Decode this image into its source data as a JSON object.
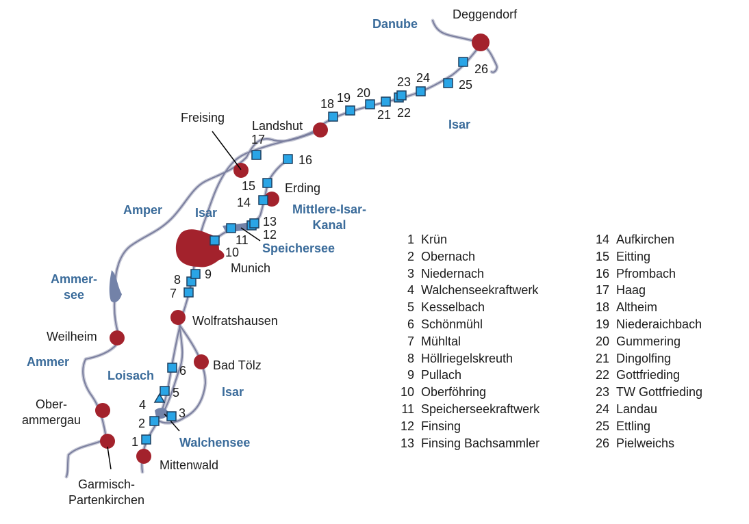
{
  "colors": {
    "river": "#7a7e9e",
    "river_outline": "#c7c9d6",
    "city_fill": "#a3222c",
    "station_fill": "#2aa5e6",
    "station_stroke": "#1d3f5e",
    "lake_fill": "#7382a8",
    "water_label": "#3a6b9a"
  },
  "map": {
    "cities": [
      {
        "name": "Deggendorf"
      },
      {
        "name": "Landshut"
      },
      {
        "name": "Freising"
      },
      {
        "name": "Erding"
      },
      {
        "name": "Munich"
      },
      {
        "name": "Wolfratshausen"
      },
      {
        "name": "Bad Tölz"
      },
      {
        "name": "Weilheim"
      },
      {
        "name": "Ober-\nammergau"
      },
      {
        "name": "Garmisch-\nPartenkirchen"
      },
      {
        "name": "Mittenwald"
      }
    ],
    "water_labels": [
      {
        "name": "Danube"
      },
      {
        "name": "Isar"
      },
      {
        "name": "Amper"
      },
      {
        "name": "Isar"
      },
      {
        "name": "Mittlere-Isar-\nKanal"
      },
      {
        "name": "Speichersee"
      },
      {
        "name": "Ammer-\nsee"
      },
      {
        "name": "Ammer"
      },
      {
        "name": "Loisach"
      },
      {
        "name": "Isar"
      },
      {
        "name": "Walchensee"
      }
    ],
    "station_numbers": [
      "1",
      "2",
      "3",
      "4",
      "5",
      "6",
      "7",
      "8",
      "9",
      "10",
      "11",
      "12",
      "13",
      "14",
      "15",
      "16",
      "17",
      "18",
      "19",
      "20",
      "21",
      "22",
      "23",
      "24",
      "25",
      "26"
    ]
  },
  "legend": {
    "col1": [
      {
        "num": "1",
        "name": "Krün"
      },
      {
        "num": "2",
        "name": "Obernach"
      },
      {
        "num": "3",
        "name": "Niedernach"
      },
      {
        "num": "4",
        "name": "Walchenseekraftwerk"
      },
      {
        "num": "5",
        "name": "Kesselbach"
      },
      {
        "num": "6",
        "name": "Schönmühl"
      },
      {
        "num": "7",
        "name": "Mühltal"
      },
      {
        "num": "8",
        "name": "Höllriegelskreuth"
      },
      {
        "num": "9",
        "name": "Pullach"
      },
      {
        "num": "10",
        "name": "Oberföhring"
      },
      {
        "num": "11",
        "name": "Speicherseekraftwerk"
      },
      {
        "num": "12",
        "name": "Finsing"
      },
      {
        "num": "13",
        "name": "Finsing Bachsammler"
      }
    ],
    "col2": [
      {
        "num": "14",
        "name": "Aufkirchen"
      },
      {
        "num": "15",
        "name": "Eitting"
      },
      {
        "num": "16",
        "name": "Pfrombach"
      },
      {
        "num": "17",
        "name": "Haag"
      },
      {
        "num": "18",
        "name": "Altheim"
      },
      {
        "num": "19",
        "name": "Niederaichbach"
      },
      {
        "num": "20",
        "name": "Gummering"
      },
      {
        "num": "21",
        "name": "Dingolfing"
      },
      {
        "num": "22",
        "name": "Gottfrieding"
      },
      {
        "num": "23",
        "name": "TW Gottfrieding"
      },
      {
        "num": "24",
        "name": "Landau"
      },
      {
        "num": "25",
        "name": "Ettling"
      },
      {
        "num": "26",
        "name": "Pielweichs"
      }
    ]
  }
}
